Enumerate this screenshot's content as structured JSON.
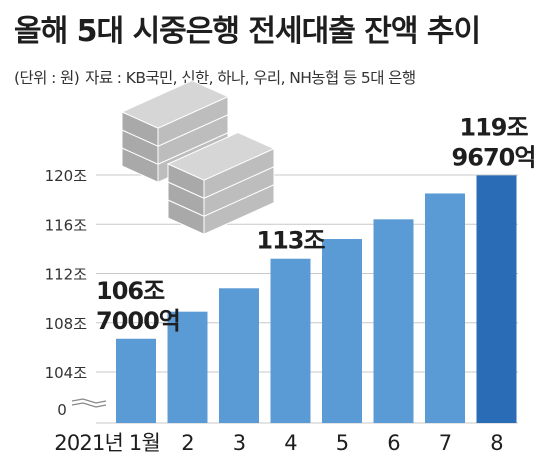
{
  "header": {
    "title": "올해 5대 시중은행 전세대출 잔액 추이",
    "unit": "(단위 : 원)",
    "source": "자료 : KB국민, 신한, 하나, 우리, NH농협 등 5대 은행"
  },
  "colors": {
    "bar": "#5b9bd5",
    "bar_highlight": "#2a6db6",
    "gridline": "#c8c8c8",
    "icon": "#c3c3c3"
  },
  "icons": [
    "stacked-bills-icon"
  ],
  "chart_data": {
    "type": "bar",
    "categories": [
      "2021년 1월",
      "2",
      "3",
      "4",
      "5",
      "6",
      "7",
      "8"
    ],
    "values": [
      106.7,
      108.9,
      110.8,
      113.2,
      114.8,
      116.4,
      118.5,
      119.967
    ],
    "ylim": [
      102,
      120
    ],
    "y_ticks": [
      104,
      108,
      112,
      116,
      120
    ],
    "y_tick_labels": [
      "104조",
      "108조",
      "112조",
      "116조",
      "120조"
    ],
    "y_zero_label": "0",
    "axis_break": true,
    "grid": true,
    "annotations": [
      {
        "index": 0,
        "lines": [
          "106조",
          "7000억"
        ]
      },
      {
        "index": 3,
        "lines": [
          "113조"
        ]
      },
      {
        "index": 7,
        "lines": [
          "119조",
          "9670억"
        ]
      }
    ],
    "highlight_index": 7
  }
}
